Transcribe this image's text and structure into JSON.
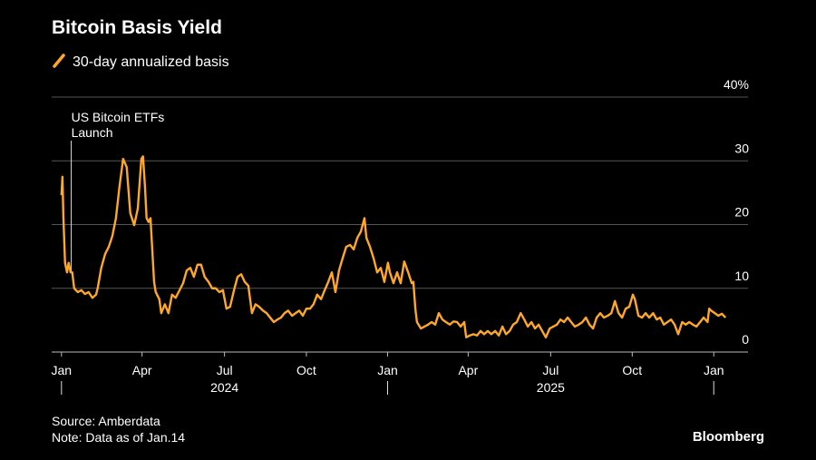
{
  "chart_data": {
    "type": "line",
    "title": "Bitcoin Basis Yield",
    "annotation": {
      "text": [
        "US Bitcoin ETFs",
        "Launch"
      ],
      "x": 2024.03
    },
    "source": "Source: Amberdata",
    "note": "Note: Data as of Jan.14",
    "brand": "Bloomberg",
    "x": [
      2024.0,
      2024.003,
      2024.006,
      2024.011,
      2024.017,
      2024.022,
      2024.028,
      2024.033,
      2024.039,
      2024.05,
      2024.061,
      2024.072,
      2024.083,
      2024.095,
      2024.106,
      2024.111,
      2024.122,
      2024.134,
      2024.145,
      2024.156,
      2024.167,
      2024.178,
      2024.189,
      2024.2,
      2024.211,
      2024.223,
      2024.234,
      2024.245,
      2024.25,
      2024.256,
      2024.261,
      2024.267,
      2024.273,
      2024.284,
      2024.289,
      2024.3,
      2024.306,
      2024.317,
      2024.328,
      2024.339,
      2024.35,
      2024.362,
      2024.373,
      2024.384,
      2024.395,
      2024.406,
      2024.417,
      2024.428,
      2024.439,
      2024.451,
      2024.462,
      2024.473,
      2024.484,
      2024.495,
      2024.506,
      2024.517,
      2024.529,
      2024.54,
      2024.551,
      2024.562,
      2024.573,
      2024.584,
      2024.595,
      2024.606,
      2024.618,
      2024.629,
      2024.64,
      2024.651,
      2024.662,
      2024.673,
      2024.684,
      2024.695,
      2024.707,
      2024.718,
      2024.729,
      2024.74,
      2024.751,
      2024.762,
      2024.773,
      2024.784,
      2024.796,
      2024.807,
      2024.818,
      2024.829,
      2024.84,
      2024.851,
      2024.862,
      2024.873,
      2024.885,
      2024.896,
      2024.907,
      2024.918,
      2024.929,
      2024.935,
      2024.946,
      2024.957,
      2024.968,
      2024.979,
      2024.99,
      2025.001,
      2025.007,
      2025.018,
      2025.029,
      2025.04,
      2025.051,
      2025.063,
      2025.074,
      2025.079,
      2025.085,
      2025.09,
      2025.102,
      2025.113,
      2025.124,
      2025.135,
      2025.146,
      2025.157,
      2025.168,
      2025.179,
      2025.191,
      2025.202,
      2025.213,
      2025.224,
      2025.235,
      2025.241,
      2025.252,
      2025.263,
      2025.274,
      2025.285,
      2025.296,
      2025.307,
      2025.318,
      2025.33,
      2025.341,
      2025.352,
      2025.363,
      2025.374,
      2025.385,
      2025.396,
      2025.408,
      2025.419,
      2025.43,
      2025.441,
      2025.452,
      2025.463,
      2025.474,
      2025.485,
      2025.497,
      2025.508,
      2025.519,
      2025.53,
      2025.541,
      2025.552,
      2025.563,
      2025.574,
      2025.586,
      2025.597,
      2025.608,
      2025.619,
      2025.63,
      2025.641,
      2025.652,
      2025.663,
      2025.675,
      2025.686,
      2025.697,
      2025.708,
      2025.719,
      2025.73,
      2025.741,
      2025.752,
      2025.758,
      2025.769,
      2025.78,
      2025.791,
      2025.802,
      2025.814,
      2025.825,
      2025.836,
      2025.847,
      2025.858,
      2025.869,
      2025.88,
      2025.891,
      2025.903,
      2025.914,
      2025.925,
      2025.936,
      2025.947,
      2025.958,
      2025.969,
      2025.981,
      2025.986,
      2025.992,
      2026.003,
      2026.014,
      2026.025,
      2026.036
    ],
    "series": [
      {
        "name": "30-day annualized basis",
        "color": "#ffa726",
        "values": [
          24.6,
          27.5,
          21,
          14,
          12.5,
          14,
          12.5,
          12.5,
          10,
          9.4,
          9.7,
          9.1,
          9.4,
          8.5,
          9,
          10,
          13.2,
          15.4,
          16.5,
          18.2,
          21,
          26,
          30.3,
          29,
          21.8,
          19.9,
          22.5,
          30.3,
          30.7,
          26,
          21,
          20.4,
          21,
          11,
          9.4,
          8.3,
          6.1,
          7.5,
          6.1,
          9,
          8.5,
          9.7,
          10.8,
          12.8,
          13.2,
          11.8,
          13.7,
          13.7,
          11.8,
          11,
          10,
          10,
          9.4,
          9.7,
          6.8,
          7.1,
          9.7,
          11.8,
          12.2,
          11,
          10.4,
          6.1,
          7.5,
          7.1,
          6.5,
          6.1,
          5.4,
          4.7,
          5.1,
          5.4,
          6.1,
          6.5,
          5.7,
          6.1,
          6.5,
          5.7,
          6.8,
          6.8,
          7.5,
          9,
          8.3,
          9.7,
          11,
          12.5,
          9.4,
          12.8,
          14.7,
          16.5,
          16.8,
          16.1,
          17.9,
          18.9,
          21,
          17.9,
          16.5,
          14.7,
          12.5,
          13.2,
          11,
          14,
          12.5,
          10.8,
          12.5,
          10.8,
          14.2,
          12.5,
          10.8,
          11,
          6.8,
          4.7,
          3.7,
          4,
          4.3,
          4.7,
          4.3,
          6.1,
          5.1,
          4.7,
          4.3,
          4.8,
          4.7,
          4,
          4.7,
          2.3,
          2.6,
          2.8,
          2.6,
          3.3,
          2.8,
          3.3,
          2.8,
          3.3,
          2.6,
          4,
          2.8,
          3.3,
          4.3,
          4.7,
          6.1,
          5.1,
          4,
          4.7,
          3.7,
          4.3,
          3.3,
          2.3,
          3.7,
          4,
          4.3,
          5.1,
          4.7,
          5.4,
          4.7,
          4,
          4.3,
          4.7,
          5.4,
          4.3,
          3.7,
          5.4,
          6.1,
          5.4,
          5.7,
          6.1,
          8,
          6.1,
          5.4,
          6.8,
          7.1,
          9,
          8.3,
          5.7,
          5.4,
          6.1,
          5.4,
          6.1,
          5.1,
          5.4,
          4.3,
          4.7,
          5.1,
          4.3,
          2.8,
          4.7,
          4.3,
          4.7,
          4.3,
          4,
          4.7,
          5.4,
          4.7,
          6.8,
          6.5,
          6.1,
          5.7,
          6,
          5.4
        ]
      }
    ],
    "xlim": [
      2023.97,
      2026.105
    ],
    "xticks": [
      {
        "value": 2024,
        "label": "Jan"
      },
      {
        "value": 2024.247,
        "label": "Apr"
      },
      {
        "value": 2024.5,
        "label": "Jul"
      },
      {
        "value": 2024.751,
        "label": "Oct"
      },
      {
        "value": 2025,
        "label": "Jan"
      },
      {
        "value": 2025.247,
        "label": "Apr"
      },
      {
        "value": 2025.5,
        "label": "Jul"
      },
      {
        "value": 2025.75,
        "label": "Oct"
      },
      {
        "value": 2026,
        "label": "Jan"
      }
    ],
    "year_labels": [
      {
        "value": 2024.5,
        "label": "2024"
      },
      {
        "value": 2025.5,
        "label": "2025"
      }
    ],
    "year_ticks": [
      2024,
      2025,
      2026
    ],
    "ylim": [
      0,
      40
    ],
    "yticks": [
      0,
      10,
      20,
      30,
      {
        "value": 40,
        "label": "40%"
      }
    ],
    "grid": true
  }
}
